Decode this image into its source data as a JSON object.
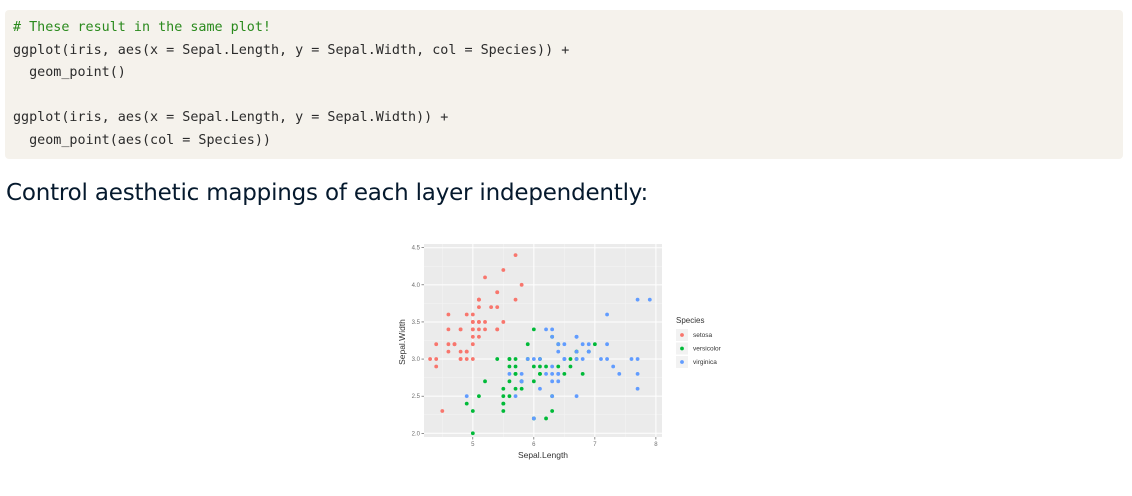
{
  "code": {
    "lines": [
      "# These result in the same plot!",
      "ggplot(iris, aes(x = Sepal.Length, y = Sepal.Width, col = Species)) +",
      "  geom_point()",
      "",
      "ggplot(iris, aes(x = Sepal.Length, y = Sepal.Width)) +",
      "  geom_point(aes(col = Species))"
    ]
  },
  "heading": "Control aesthetic mappings of each layer independently:",
  "chart_data": {
    "type": "scatter",
    "xlabel": "Sepal.Length",
    "ylabel": "Sepal.Width",
    "xlim": [
      4.2,
      8.1
    ],
    "ylim": [
      1.95,
      4.55
    ],
    "x_ticks": [
      "5",
      "6",
      "7",
      "8"
    ],
    "y_ticks": [
      "2.0",
      "2.5",
      "3.0",
      "3.5",
      "4.0",
      "4.5"
    ],
    "grid": true,
    "legend_title": "Species",
    "legend_position": "right",
    "series": [
      {
        "name": "setosa",
        "color": "#f8766d",
        "points": [
          [
            5.1,
            3.5
          ],
          [
            4.9,
            3.0
          ],
          [
            4.7,
            3.2
          ],
          [
            4.6,
            3.1
          ],
          [
            5.0,
            3.6
          ],
          [
            5.4,
            3.9
          ],
          [
            4.6,
            3.4
          ],
          [
            5.0,
            3.4
          ],
          [
            4.4,
            2.9
          ],
          [
            4.9,
            3.1
          ],
          [
            5.4,
            3.7
          ],
          [
            4.8,
            3.4
          ],
          [
            4.8,
            3.0
          ],
          [
            4.3,
            3.0
          ],
          [
            5.8,
            4.0
          ],
          [
            5.7,
            4.4
          ],
          [
            5.4,
            3.9
          ],
          [
            5.1,
            3.5
          ],
          [
            5.7,
            3.8
          ],
          [
            5.1,
            3.8
          ],
          [
            5.4,
            3.4
          ],
          [
            5.1,
            3.7
          ],
          [
            4.6,
            3.6
          ],
          [
            5.1,
            3.3
          ],
          [
            4.8,
            3.4
          ],
          [
            5.0,
            3.0
          ],
          [
            5.0,
            3.4
          ],
          [
            5.2,
            3.5
          ],
          [
            5.2,
            3.4
          ],
          [
            4.7,
            3.2
          ],
          [
            4.8,
            3.1
          ],
          [
            5.4,
            3.4
          ],
          [
            5.2,
            4.1
          ],
          [
            5.5,
            4.2
          ],
          [
            4.9,
            3.1
          ],
          [
            5.0,
            3.2
          ],
          [
            5.5,
            3.5
          ],
          [
            4.9,
            3.6
          ],
          [
            4.4,
            3.0
          ],
          [
            5.1,
            3.4
          ],
          [
            5.0,
            3.5
          ],
          [
            4.5,
            2.3
          ],
          [
            4.4,
            3.2
          ],
          [
            5.0,
            3.5
          ],
          [
            5.1,
            3.8
          ],
          [
            4.8,
            3.0
          ],
          [
            5.1,
            3.8
          ],
          [
            4.6,
            3.2
          ],
          [
            5.3,
            3.7
          ],
          [
            5.0,
            3.3
          ]
        ]
      },
      {
        "name": "versicolor",
        "color": "#00ba38",
        "points": [
          [
            7.0,
            3.2
          ],
          [
            6.4,
            3.2
          ],
          [
            6.9,
            3.1
          ],
          [
            5.5,
            2.3
          ],
          [
            6.5,
            2.8
          ],
          [
            5.7,
            2.8
          ],
          [
            6.3,
            3.3
          ],
          [
            4.9,
            2.4
          ],
          [
            6.6,
            2.9
          ],
          [
            5.2,
            2.7
          ],
          [
            5.0,
            2.0
          ],
          [
            5.9,
            3.0
          ],
          [
            6.0,
            2.2
          ],
          [
            6.1,
            2.9
          ],
          [
            5.6,
            2.9
          ],
          [
            6.7,
            3.1
          ],
          [
            5.6,
            3.0
          ],
          [
            5.8,
            2.7
          ],
          [
            6.2,
            2.2
          ],
          [
            5.6,
            2.5
          ],
          [
            5.9,
            3.2
          ],
          [
            6.1,
            2.8
          ],
          [
            6.3,
            2.5
          ],
          [
            6.1,
            2.8
          ],
          [
            6.4,
            2.9
          ],
          [
            6.6,
            3.0
          ],
          [
            6.8,
            2.8
          ],
          [
            6.7,
            3.0
          ],
          [
            6.0,
            2.9
          ],
          [
            5.7,
            2.6
          ],
          [
            5.5,
            2.4
          ],
          [
            5.5,
            2.4
          ],
          [
            5.8,
            2.7
          ],
          [
            6.0,
            2.7
          ],
          [
            5.4,
            3.0
          ],
          [
            6.0,
            3.4
          ],
          [
            6.7,
            3.1
          ],
          [
            6.3,
            2.3
          ],
          [
            5.6,
            3.0
          ],
          [
            5.5,
            2.5
          ],
          [
            5.5,
            2.6
          ],
          [
            6.1,
            3.0
          ],
          [
            5.8,
            2.6
          ],
          [
            5.0,
            2.3
          ],
          [
            5.6,
            2.7
          ],
          [
            5.7,
            3.0
          ],
          [
            5.7,
            2.9
          ],
          [
            6.2,
            2.9
          ],
          [
            5.1,
            2.5
          ],
          [
            5.7,
            2.8
          ]
        ]
      },
      {
        "name": "virginica",
        "color": "#619cff",
        "points": [
          [
            6.3,
            3.3
          ],
          [
            5.8,
            2.7
          ],
          [
            7.1,
            3.0
          ],
          [
            6.3,
            2.9
          ],
          [
            6.5,
            3.0
          ],
          [
            7.6,
            3.0
          ],
          [
            4.9,
            2.5
          ],
          [
            7.3,
            2.9
          ],
          [
            6.7,
            2.5
          ],
          [
            7.2,
            3.6
          ],
          [
            6.5,
            3.2
          ],
          [
            6.4,
            2.7
          ],
          [
            6.8,
            3.0
          ],
          [
            5.7,
            2.5
          ],
          [
            5.8,
            2.8
          ],
          [
            6.4,
            3.2
          ],
          [
            6.5,
            3.0
          ],
          [
            7.7,
            3.8
          ],
          [
            7.7,
            2.6
          ],
          [
            6.0,
            2.2
          ],
          [
            6.9,
            3.2
          ],
          [
            5.6,
            2.8
          ],
          [
            7.7,
            2.8
          ],
          [
            6.3,
            2.7
          ],
          [
            6.7,
            3.3
          ],
          [
            7.2,
            3.2
          ],
          [
            6.2,
            2.8
          ],
          [
            6.1,
            3.0
          ],
          [
            6.4,
            2.8
          ],
          [
            7.2,
            3.0
          ],
          [
            7.4,
            2.8
          ],
          [
            7.9,
            3.8
          ],
          [
            6.4,
            2.8
          ],
          [
            6.3,
            2.8
          ],
          [
            6.1,
            2.6
          ],
          [
            7.7,
            3.0
          ],
          [
            6.3,
            3.4
          ],
          [
            6.4,
            3.1
          ],
          [
            6.0,
            3.0
          ],
          [
            6.9,
            3.1
          ],
          [
            6.7,
            3.1
          ],
          [
            6.9,
            3.1
          ],
          [
            5.8,
            2.7
          ],
          [
            6.8,
            3.2
          ],
          [
            6.7,
            3.3
          ],
          [
            6.7,
            3.0
          ],
          [
            6.3,
            2.5
          ],
          [
            6.5,
            3.0
          ],
          [
            6.2,
            3.4
          ],
          [
            5.9,
            3.0
          ]
        ]
      }
    ]
  }
}
